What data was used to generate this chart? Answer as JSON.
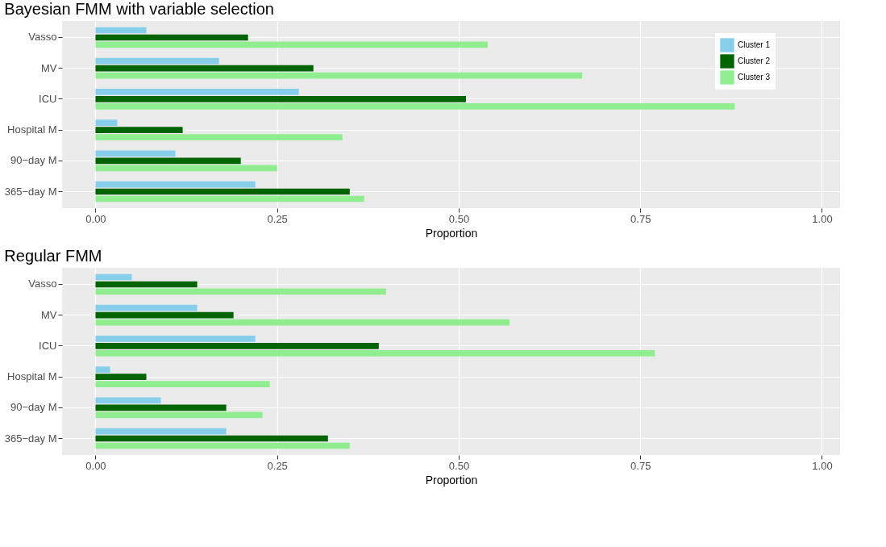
{
  "chart_data": [
    {
      "type": "bar",
      "orientation": "horizontal",
      "title": "Bayesian FMM with variable selection",
      "xlabel": "Proportion",
      "categories": [
        "Vasso",
        "MV",
        "ICU",
        "Hospital M",
        "90−day M",
        "365−day M"
      ],
      "series": [
        {
          "name": "Cluster 1",
          "color": "#87ceeb",
          "values": [
            0.07,
            0.17,
            0.28,
            0.03,
            0.11,
            0.22
          ]
        },
        {
          "name": "Cluster 2",
          "color": "#006400",
          "values": [
            0.21,
            0.3,
            0.51,
            0.12,
            0.2,
            0.35
          ]
        },
        {
          "name": "Cluster 3",
          "color": "#90ee90",
          "values": [
            0.54,
            0.67,
            0.88,
            0.34,
            0.25,
            0.37
          ]
        }
      ],
      "xlim": [
        -0.046,
        1.025
      ],
      "xticks": [
        {
          "value": 0,
          "label": "0.00"
        },
        {
          "value": 0.25,
          "label": "0.25"
        },
        {
          "value": 0.5,
          "label": "0.50"
        },
        {
          "value": 0.75,
          "label": "0.75"
        },
        {
          "value": 1,
          "label": "1.00"
        }
      ],
      "grid": true,
      "legend": "top right"
    },
    {
      "type": "bar",
      "orientation": "horizontal",
      "title": "Regular FMM",
      "xlabel": "Proportion",
      "categories": [
        "Vasso",
        "MV",
        "ICU",
        "Hospital M",
        "90−day M",
        "365−day M"
      ],
      "series": [
        {
          "name": "Cluster 1",
          "color": "#87ceeb",
          "values": [
            0.05,
            0.14,
            0.22,
            0.02,
            0.09,
            0.18
          ]
        },
        {
          "name": "Cluster 2",
          "color": "#006400",
          "values": [
            0.14,
            0.19,
            0.39,
            0.07,
            0.18,
            0.32
          ]
        },
        {
          "name": "Cluster 3",
          "color": "#90ee90",
          "values": [
            0.4,
            0.57,
            0.77,
            0.24,
            0.23,
            0.35
          ]
        }
      ],
      "xlim": [
        -0.046,
        1.025
      ],
      "xticks": [
        {
          "value": 0,
          "label": "0.00"
        },
        {
          "value": 0.25,
          "label": "0.25"
        },
        {
          "value": 0.5,
          "label": "0.50"
        },
        {
          "value": 0.75,
          "label": "0.75"
        },
        {
          "value": 1,
          "label": "1.00"
        }
      ],
      "grid": true,
      "legend": "top right"
    }
  ]
}
